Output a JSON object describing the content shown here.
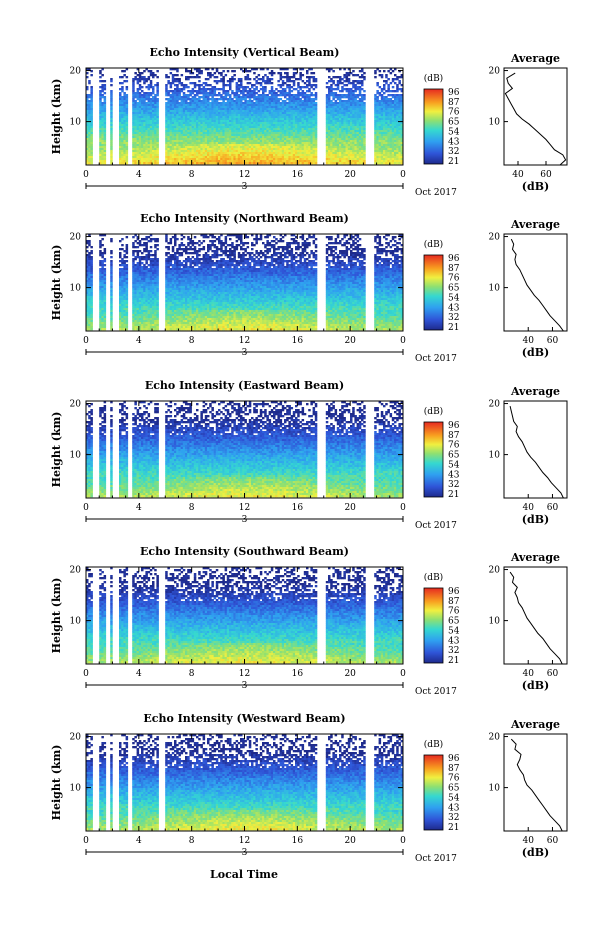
{
  "figure": {
    "local_time_label": "Local Time",
    "date_day": "3",
    "date_month": "Oct 2017",
    "height_label": "Height (km)",
    "avg_title": "Average",
    "avg_unit": "(dB)",
    "colorbar_unit": "(dB)"
  },
  "chart_data": [
    {
      "type": "heatmap",
      "title": "Echo Intensity (Vertical Beam)",
      "ylabel": "Height (km)",
      "x_ticks": [
        "0",
        "4",
        "8",
        "12",
        "16",
        "20",
        "0"
      ],
      "y_ticks": [
        "20",
        "10"
      ],
      "xlim": [
        0,
        24
      ],
      "ylim": [
        1.5,
        20.5
      ],
      "colorbar_ticks": [
        "96",
        "87",
        "76",
        "65",
        "54",
        "43",
        "32",
        "21"
      ],
      "data_gaps_hours": [
        [
          0.6,
          0.95
        ],
        [
          1.55,
          1.75
        ],
        [
          2.05,
          2.35
        ],
        [
          3.25,
          3.4
        ],
        [
          5.5,
          5.9
        ],
        [
          17.65,
          18.1
        ],
        [
          21.2,
          21.75
        ]
      ],
      "profile": {
        "xlabel": "(dB)",
        "x_ticks": [
          "40",
          "60"
        ],
        "xlim": [
          30,
          75
        ],
        "height_km": [
          1.5,
          2.5,
          3.5,
          4.5,
          5.5,
          6.5,
          7.5,
          8.5,
          9.5,
          10.5,
          11.5,
          12.5,
          13.5,
          14.5,
          15.5,
          16.5,
          17.5,
          18.5,
          19.5
        ],
        "value_db": [
          70,
          74,
          72,
          66,
          63,
          60,
          56,
          52,
          48,
          43,
          39,
          37,
          35,
          33,
          31,
          36,
          33,
          32,
          38
        ]
      }
    },
    {
      "type": "heatmap",
      "title": "Echo Intensity (Northward Beam)",
      "ylabel": "Height (km)",
      "x_ticks": [
        "0",
        "4",
        "8",
        "12",
        "16",
        "20",
        "0"
      ],
      "y_ticks": [
        "20",
        "10"
      ],
      "xlim": [
        0,
        24
      ],
      "ylim": [
        1.5,
        20.5
      ],
      "colorbar_ticks": [
        "96",
        "87",
        "76",
        "65",
        "54",
        "43",
        "32",
        "21"
      ],
      "data_gaps_hours": [
        [
          0.6,
          0.95
        ],
        [
          1.55,
          1.75
        ],
        [
          2.05,
          2.35
        ],
        [
          3.25,
          3.4
        ],
        [
          5.5,
          5.9
        ],
        [
          17.65,
          18.1
        ],
        [
          21.2,
          21.75
        ]
      ],
      "profile": {
        "xlabel": "(dB)",
        "x_ticks": [
          "40",
          "60"
        ],
        "xlim": [
          20,
          72
        ],
        "height_km": [
          1.5,
          2.5,
          3.5,
          4.5,
          5.5,
          6.5,
          7.5,
          8.5,
          9.5,
          10.5,
          11.5,
          12.5,
          13.5,
          14.5,
          15.5,
          16.5,
          17.5,
          18.5,
          19.5
        ],
        "value_db": [
          69,
          66,
          62,
          58,
          55,
          52,
          49,
          45,
          42,
          39,
          37,
          35,
          33,
          30,
          29,
          30,
          27,
          28,
          26
        ]
      }
    },
    {
      "type": "heatmap",
      "title": "Echo Intensity (Eastward Beam)",
      "ylabel": "Height (km)",
      "x_ticks": [
        "0",
        "4",
        "8",
        "12",
        "16",
        "20",
        "0"
      ],
      "y_ticks": [
        "20",
        "10"
      ],
      "xlim": [
        0,
        24
      ],
      "ylim": [
        1.5,
        20.5
      ],
      "colorbar_ticks": [
        "96",
        "87",
        "76",
        "65",
        "54",
        "43",
        "32",
        "21"
      ],
      "data_gaps_hours": [
        [
          0.6,
          0.95
        ],
        [
          1.55,
          1.75
        ],
        [
          2.05,
          2.35
        ],
        [
          3.25,
          3.4
        ],
        [
          5.5,
          5.9
        ],
        [
          17.65,
          18.1
        ],
        [
          21.2,
          21.75
        ]
      ],
      "profile": {
        "xlabel": "(dB)",
        "x_ticks": [
          "40",
          "60"
        ],
        "xlim": [
          20,
          72
        ],
        "height_km": [
          1.5,
          2.5,
          3.5,
          4.5,
          5.5,
          6.5,
          7.5,
          8.5,
          9.5,
          10.5,
          11.5,
          12.5,
          13.5,
          14.5,
          15.5,
          16.5,
          17.5,
          18.5,
          19.5
        ],
        "value_db": [
          69,
          67,
          63,
          59,
          56,
          52,
          49,
          46,
          42,
          39,
          37,
          35,
          32,
          30,
          31,
          28,
          27,
          26,
          25
        ]
      }
    },
    {
      "type": "heatmap",
      "title": "Echo Intensity (Southward Beam)",
      "ylabel": "Height (km)",
      "x_ticks": [
        "0",
        "4",
        "8",
        "12",
        "16",
        "20",
        "0"
      ],
      "y_ticks": [
        "20",
        "10"
      ],
      "xlim": [
        0,
        24
      ],
      "ylim": [
        1.5,
        20.5
      ],
      "colorbar_ticks": [
        "96",
        "87",
        "76",
        "65",
        "54",
        "43",
        "32",
        "21"
      ],
      "data_gaps_hours": [
        [
          0.6,
          0.95
        ],
        [
          1.55,
          1.75
        ],
        [
          2.05,
          2.35
        ],
        [
          3.25,
          3.4
        ],
        [
          5.5,
          5.9
        ],
        [
          17.65,
          18.1
        ],
        [
          21.2,
          21.75
        ]
      ],
      "profile": {
        "xlabel": "(dB)",
        "x_ticks": [
          "40",
          "60"
        ],
        "xlim": [
          20,
          72
        ],
        "height_km": [
          1.5,
          2.5,
          3.5,
          4.5,
          5.5,
          6.5,
          7.5,
          8.5,
          9.5,
          10.5,
          11.5,
          12.5,
          13.5,
          14.5,
          15.5,
          16.5,
          17.5,
          18.5,
          19.5
        ],
        "value_db": [
          68,
          66,
          62,
          58,
          55,
          52,
          48,
          45,
          42,
          39,
          37,
          35,
          32,
          31,
          29,
          31,
          27,
          28,
          25
        ]
      }
    },
    {
      "type": "heatmap",
      "title": "Echo Intensity (Westward Beam)",
      "ylabel": "Height (km)",
      "x_ticks": [
        "0",
        "4",
        "8",
        "12",
        "16",
        "20",
        "0"
      ],
      "y_ticks": [
        "20",
        "10"
      ],
      "xlim": [
        0,
        24
      ],
      "ylim": [
        1.5,
        20.5
      ],
      "colorbar_ticks": [
        "96",
        "87",
        "76",
        "65",
        "54",
        "43",
        "32",
        "21"
      ],
      "data_gaps_hours": [
        [
          0.6,
          0.95
        ],
        [
          1.55,
          1.75
        ],
        [
          2.05,
          2.35
        ],
        [
          3.25,
          3.4
        ],
        [
          5.5,
          5.9
        ],
        [
          17.65,
          18.1
        ],
        [
          21.2,
          21.75
        ]
      ],
      "profile": {
        "xlabel": "(dB)",
        "x_ticks": [
          "40",
          "60"
        ],
        "xlim": [
          20,
          72
        ],
        "height_km": [
          1.5,
          2.5,
          3.5,
          4.5,
          5.5,
          6.5,
          7.5,
          8.5,
          9.5,
          10.5,
          11.5,
          12.5,
          13.5,
          14.5,
          15.5,
          16.5,
          17.5,
          18.5,
          19.5
        ],
        "value_db": [
          68,
          66,
          62,
          58,
          55,
          52,
          49,
          46,
          43,
          39,
          37,
          36,
          33,
          31,
          33,
          34,
          29,
          30,
          26
        ]
      }
    }
  ]
}
